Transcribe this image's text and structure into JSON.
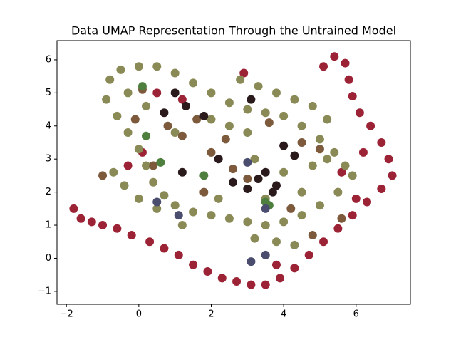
{
  "chart_data": {
    "type": "scatter",
    "title": "Data UMAP Representation Through the Untrained Model",
    "xlim": [
      -2.26,
      7.5
    ],
    "ylim": [
      -1.39,
      6.58
    ],
    "xticks": [
      {
        "value": -2,
        "label": "−2"
      },
      0,
      2,
      4,
      6
    ],
    "yticks": [
      {
        "value": -1,
        "label": "−1"
      },
      0,
      1,
      2,
      3,
      4,
      5,
      6
    ],
    "grid": false,
    "series": [
      {
        "color": "#9b2335",
        "x": [
          -1.8,
          -1.6,
          -1.3,
          -1,
          -0.6,
          -0.2,
          0.3,
          0.7,
          1.1,
          1.5,
          1.9,
          2.3,
          2.7,
          3.1,
          3.5,
          3.9,
          4.3,
          4.7,
          5.1,
          5.5,
          5.9,
          6.3,
          6.7,
          7.0,
          6.9,
          6.7,
          6.4,
          6.1,
          5.9,
          5.8,
          5.7,
          5.4,
          5.1,
          6.0,
          5.6,
          6.2,
          0.1,
          -0.3,
          0.5,
          1.2,
          3.8,
          2.9
        ],
        "values": [
          1.5,
          1.2,
          1.1,
          1.0,
          0.9,
          0.7,
          0.5,
          0.3,
          0.1,
          -0.2,
          -0.4,
          -0.6,
          -0.7,
          -0.8,
          -0.8,
          -0.6,
          -0.3,
          0.1,
          0.5,
          0.9,
          1.3,
          1.7,
          2.1,
          2.5,
          3.0,
          3.5,
          4.0,
          4.4,
          4.9,
          5.4,
          5.9,
          6.1,
          5.8,
          1.8,
          2.6,
          3.2,
          3.2,
          2.8,
          5.0,
          4.8,
          -0.2,
          5.6
        ]
      },
      {
        "color": "#8a8a57",
        "x": [
          -0.8,
          -0.9,
          -0.6,
          -0.3,
          0.0,
          0.2,
          0.4,
          0.7,
          1.0,
          1.5,
          2.0,
          2.5,
          3.0,
          3.5,
          4.0,
          4.5,
          5.0,
          5.5,
          5.9,
          -0.5,
          0,
          0.5,
          1.0,
          1.5,
          2.0,
          2.5,
          3.0,
          3.5,
          4.0,
          4.5,
          5.0,
          5.4,
          5.7,
          -0.7,
          -0.4,
          0,
          0.5,
          2.8,
          3.3,
          3.8,
          4.3,
          4.8,
          5.2,
          3.0,
          2.5,
          3.5,
          4.5,
          4.0,
          3.2,
          3.8,
          4.3,
          1.2,
          2.2,
          5.2,
          4.8,
          2.0,
          1.0,
          0.2,
          -0.3,
          3.2
        ],
        "values": [
          5.4,
          4.8,
          4.3,
          3.8,
          3.3,
          2.8,
          2.3,
          1.9,
          1.6,
          1.4,
          1.3,
          1.2,
          1.1,
          1.0,
          1.1,
          1.3,
          1.6,
          2.0,
          2.5,
          5.7,
          5.8,
          5.8,
          5.6,
          5.3,
          5.0,
          4.7,
          4.5,
          4.4,
          4.3,
          4.0,
          3.6,
          3.2,
          2.8,
          2.6,
          2.2,
          1.8,
          1.5,
          5.4,
          5.2,
          5.0,
          4.8,
          4.6,
          4.2,
          3.8,
          4.0,
          1.8,
          2.0,
          2.6,
          0.6,
          0.5,
          0.4,
          1.0,
          1.8,
          3.0,
          2.8,
          4.2,
          3.8,
          4.6,
          5.0,
          3.0
        ]
      },
      {
        "color": "#7d5a3c",
        "x": [
          0.8,
          1.2,
          2.0,
          2.4,
          3.0,
          4.5,
          5.0,
          0.1,
          -0.1,
          1.8,
          2.6,
          4.2,
          5.6,
          3.6,
          1.6,
          4.8,
          0.4,
          -1.0
        ],
        "values": [
          4.0,
          3.7,
          3.2,
          3.6,
          2.4,
          3.5,
          3.3,
          5.1,
          4.2,
          2.0,
          2.7,
          1.5,
          1.2,
          4.1,
          4.2,
          0.7,
          2.8,
          2.5
        ]
      },
      {
        "color": "#2b1a1c",
        "x": [
          1.0,
          1.3,
          3.3,
          3.5,
          3.0,
          3.8,
          2.2,
          1.2,
          4.3,
          3.1,
          3.7,
          2.6,
          0.7,
          4.0,
          1.8
        ],
        "values": [
          5.0,
          4.6,
          2.4,
          2.6,
          2.1,
          2.2,
          3.0,
          2.6,
          3.1,
          4.8,
          2.0,
          2.3,
          4.4,
          3.4,
          4.3
        ]
      },
      {
        "color": "#4e7f3e",
        "x": [
          0.1,
          0.2,
          0.6,
          3.5,
          3.6,
          1.8
        ],
        "values": [
          5.2,
          3.7,
          2.9,
          1.7,
          1.6,
          2.5
        ]
      },
      {
        "color": "#4b4d6e",
        "x": [
          0.5,
          1.1,
          3.1,
          3.5,
          3.0,
          3.5
        ],
        "values": [
          1.7,
          1.3,
          -0.1,
          0.1,
          2.9,
          1.5
        ]
      }
    ]
  }
}
